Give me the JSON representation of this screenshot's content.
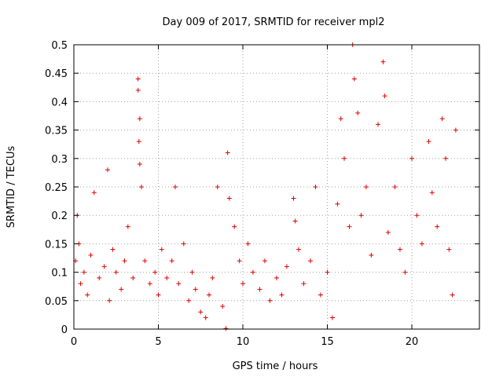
{
  "chart_data": {
    "type": "scatter",
    "title": "Day 009 of 2017, SRMTID for receiver mpl2",
    "xlabel": "GPS time / hours",
    "ylabel": "SRMTID / TECUs",
    "xlim": [
      0,
      24
    ],
    "ylim": [
      0,
      0.5
    ],
    "x_ticks": [
      0,
      5,
      10,
      15,
      20
    ],
    "x_tick_labels": [
      "0",
      "5",
      "10",
      "15",
      "20"
    ],
    "y_ticks": [
      0,
      0.05,
      0.1,
      0.15,
      0.2,
      0.25,
      0.3,
      0.35,
      0.4,
      0.45,
      0.5
    ],
    "y_tick_labels": [
      "0",
      "0.05",
      "0.1",
      "0.15",
      "0.2",
      "0.25",
      "0.3",
      "0.35",
      "0.4",
      "0.45",
      "0.5"
    ],
    "grid": true,
    "marker": "+",
    "color": "#e00000",
    "series": [
      {
        "name": "SRMTID",
        "x": [
          0.1,
          0.2,
          0.3,
          0.4,
          0.6,
          0.8,
          1.0,
          1.2,
          1.5,
          1.8,
          2.0,
          2.1,
          2.3,
          2.5,
          2.8,
          3.0,
          3.2,
          3.5,
          3.8,
          3.8,
          3.9,
          3.85,
          3.9,
          4.0,
          4.2,
          4.5,
          4.8,
          5.0,
          5.2,
          5.5,
          5.8,
          6.0,
          6.2,
          6.5,
          6.8,
          7.0,
          7.2,
          7.5,
          7.8,
          8.0,
          8.2,
          8.5,
          8.8,
          9.0,
          9.1,
          9.2,
          9.5,
          9.8,
          10.0,
          10.3,
          10.6,
          11.0,
          11.3,
          11.6,
          12.0,
          12.3,
          12.6,
          13.0,
          13.1,
          13.3,
          13.6,
          14.0,
          14.3,
          14.6,
          15.0,
          15.3,
          15.6,
          15.8,
          16.0,
          16.3,
          16.5,
          16.6,
          16.8,
          17.0,
          17.3,
          17.6,
          18.0,
          18.3,
          18.4,
          18.6,
          19.0,
          19.3,
          19.6,
          20.0,
          20.3,
          20.6,
          21.0,
          21.2,
          21.5,
          21.8,
          22.0,
          22.2,
          22.4,
          22.6
        ],
        "y": [
          0.12,
          0.2,
          0.15,
          0.08,
          0.1,
          0.06,
          0.13,
          0.24,
          0.09,
          0.11,
          0.28,
          0.05,
          0.14,
          0.1,
          0.07,
          0.12,
          0.18,
          0.09,
          0.44,
          0.42,
          0.37,
          0.33,
          0.29,
          0.25,
          0.12,
          0.08,
          0.1,
          0.06,
          0.14,
          0.09,
          0.12,
          0.25,
          0.08,
          0.15,
          0.05,
          0.1,
          0.07,
          0.03,
          0.02,
          0.06,
          0.09,
          0.25,
          0.04,
          0.001,
          0.31,
          0.23,
          0.18,
          0.12,
          0.08,
          0.15,
          0.1,
          0.07,
          0.12,
          0.05,
          0.09,
          0.06,
          0.11,
          0.23,
          0.19,
          0.14,
          0.08,
          0.12,
          0.25,
          0.06,
          0.1,
          0.02,
          0.22,
          0.37,
          0.3,
          0.18,
          0.5,
          0.44,
          0.38,
          0.2,
          0.25,
          0.13,
          0.36,
          0.47,
          0.41,
          0.17,
          0.25,
          0.14,
          0.1,
          0.3,
          0.2,
          0.15,
          0.33,
          0.24,
          0.18,
          0.37,
          0.3,
          0.14,
          0.06,
          0.35
        ]
      }
    ]
  }
}
